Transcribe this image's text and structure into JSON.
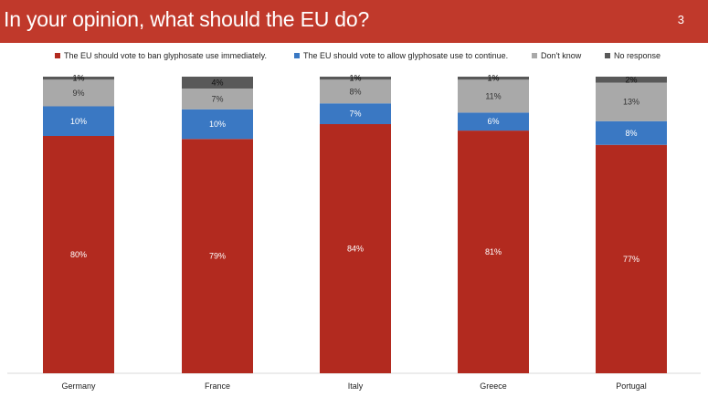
{
  "header": {
    "title": "In your opinion, what should the EU do?",
    "page_number": "3",
    "color": "#c0392b"
  },
  "chart_data": {
    "type": "bar",
    "stacked": true,
    "categories": [
      "Germany",
      "France",
      "Italy",
      "Greece",
      "Portugal"
    ],
    "series": [
      {
        "name": "The EU should vote to ban glyphosate use immediately.",
        "color": "#b22a1f",
        "label_color": "#ffffff",
        "values": [
          80,
          79,
          84,
          81,
          77
        ],
        "labels": [
          "80%",
          "79%",
          "84%",
          "81%",
          "77%"
        ]
      },
      {
        "name": "The EU should vote to allow glyphosate use to continue.",
        "color": "#3a78c3",
        "label_color": "#ffffff",
        "values": [
          10,
          10,
          7,
          6,
          8
        ],
        "labels": [
          "10%",
          "10%",
          "7%",
          "6%",
          "8%"
        ]
      },
      {
        "name": "Don't know",
        "color": "#a9a9a9",
        "label_color": "#333333",
        "values": [
          9,
          7,
          8,
          11,
          13
        ],
        "labels": [
          "9%",
          "7%",
          "8%",
          "11%",
          "13%"
        ]
      },
      {
        "name": "No response",
        "color": "#595959",
        "label_color": "#111111",
        "values": [
          1,
          4,
          1,
          1,
          2
        ],
        "labels": [
          "1%",
          "4%",
          "1%",
          "1%",
          "2%"
        ]
      }
    ],
    "ylim": [
      0,
      100
    ],
    "legend_position": "top",
    "grid": false
  }
}
